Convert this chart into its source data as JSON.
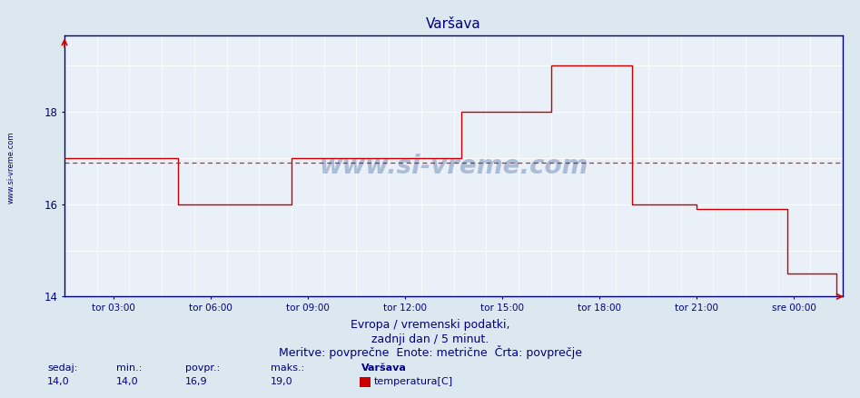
{
  "title": "Varšava",
  "title_color": "#000080",
  "title_fontsize": 11,
  "bg_color": "#dce8f0",
  "plot_bg_color": "#eaf0f8",
  "grid_color": "#ffffff",
  "line_color": "#cc0000",
  "avg_line_color": "#cc0000",
  "ylim_min": 14.0,
  "ylim_max": 19.65,
  "yticks": [
    14,
    16,
    18
  ],
  "xtick_hours": [
    3,
    6,
    9,
    12,
    15,
    18,
    21,
    24
  ],
  "xlabel_texts": [
    "tor 03:00",
    "tor 06:00",
    "tor 09:00",
    "tor 12:00",
    "tor 15:00",
    "tor 18:00",
    "tor 21:00",
    "sre 00:00"
  ],
  "xmin": 1.5,
  "xmax": 25.5,
  "footer_line1": "Evropa / vremenski podatki,",
  "footer_line2": "zadnji dan / 5 minut.",
  "footer_line3": "Meritve: povprečne  Enote: metrične  Črta: povprečje",
  "footer_color": "#000080",
  "footer_fontsize": 9,
  "stats_labels": [
    "sedaj:",
    "min.:",
    "povpr.:",
    "maks.:"
  ],
  "stats_values": [
    "14,0",
    "14,0",
    "16,9",
    "19,0"
  ],
  "legend_title": "Varšava",
  "legend_label": "temperatura[C]",
  "legend_color": "#cc0000",
  "watermark": "www.si-vreme.com",
  "avg_value": 16.9,
  "steps": [
    [
      1.5,
      17.0
    ],
    [
      5.0,
      16.0
    ],
    [
      8.5,
      17.0
    ],
    [
      13.75,
      18.0
    ],
    [
      15.2,
      18.0
    ],
    [
      16.5,
      19.0
    ],
    [
      19.0,
      16.0
    ],
    [
      20.95,
      16.0
    ],
    [
      21.0,
      15.9
    ],
    [
      23.8,
      14.5
    ],
    [
      25.3,
      14.0
    ]
  ],
  "xend": 25.5
}
